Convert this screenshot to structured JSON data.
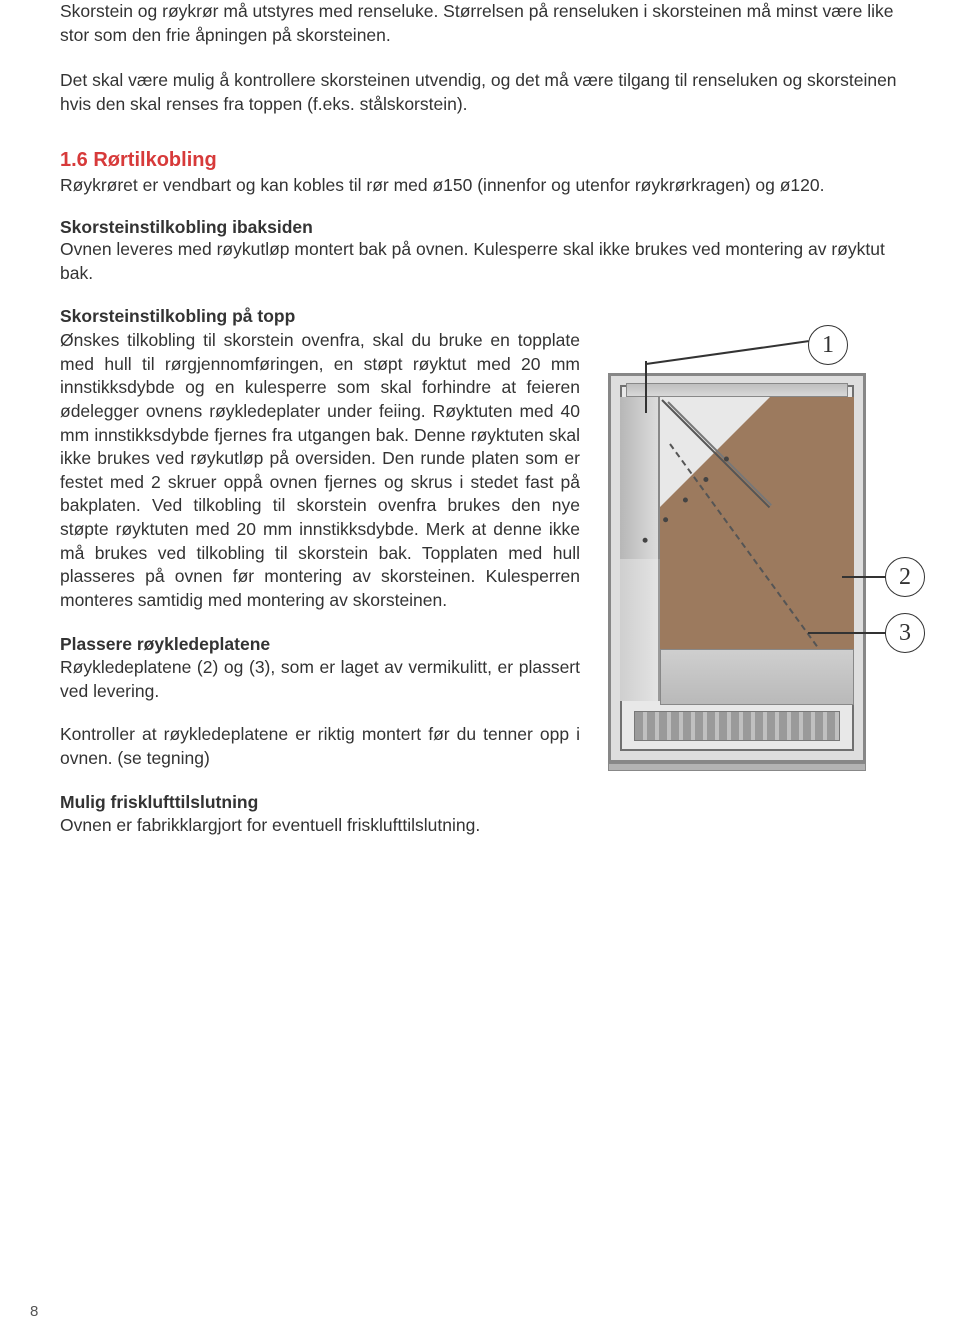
{
  "intro": {
    "p1": "Skorstein og røykrør må utstyres med renseluke. Størrelsen på renseluken i skorsteinen må minst være like stor som den frie åpningen på skorsteinen.",
    "p2": "Det skal være mulig å kontrollere skorsteinen utvendig, og det må være tilgang til renseluken og skorsteinen hvis den skal renses fra toppen (f.eks. stålskorstein)."
  },
  "section": {
    "heading": "1.6 Rørtilkobling",
    "lead": "Røykrøret er vendbart og kan kobles til rør med ø150 (innenfor og utenfor røykrørkragen) og ø120."
  },
  "back": {
    "heading": "Skorsteinstilkobling ibaksiden",
    "text": "Ovnen leveres med røykutløp montert bak på ovnen. Kulesperre skal ikke brukes ved montering av røyktut bak."
  },
  "top": {
    "heading": "Skorsteinstilkobling på topp",
    "text": "Ønskes tilkobling til skorstein ovenfra, skal du bruke en topplate med hull til rørgjennomføringen, en støpt røyktut med 20 mm innstikksdybde og en kulesperre som skal forhindre at feieren ødelegger ovnens røykledeplater under feiing. Røyktuten med 40 mm innstikksdybde fjernes fra utgangen bak. Denne røyktuten skal ikke brukes ved røykutløp på oversiden. Den runde platen som er festet med 2 skruer oppå ovnen fjernes og skrus i stedet fast på bakplaten. Ved tilkobling til skorstein ovenfra brukes den nye støpte røyktuten med 20 mm innstikksdybde. Merk at denne ikke må brukes ved tilkobling til skorstein bak. Topplaten med hull plasseres på ovnen før montering av skorsteinen. Kulesperren monteres samtidig med montering av skorsteinen."
  },
  "plates": {
    "heading": "Plassere røykledeplatene",
    "text1": "Røykledeplatene (2) og (3), som er laget av vermikulitt, er plassert ved levering.",
    "text2": "Kontroller at røykledeplatene er riktig montert før du tenner opp i ovnen. (se tegning)"
  },
  "freshair": {
    "heading": "Mulig frisklufttilslutning",
    "text": "Ovnen er fabrikklargjort for eventuell frisklufttilslutning."
  },
  "callouts": {
    "c1": "1",
    "c2": "2",
    "c3": "3"
  },
  "diagram": {
    "colors": {
      "outer_border": "#878787",
      "outer_fill": "#dedede",
      "inner_fill": "#e8e8e8",
      "panel_fill": "#9c7a5e",
      "line": "#555555"
    }
  },
  "pageNumber": "8"
}
